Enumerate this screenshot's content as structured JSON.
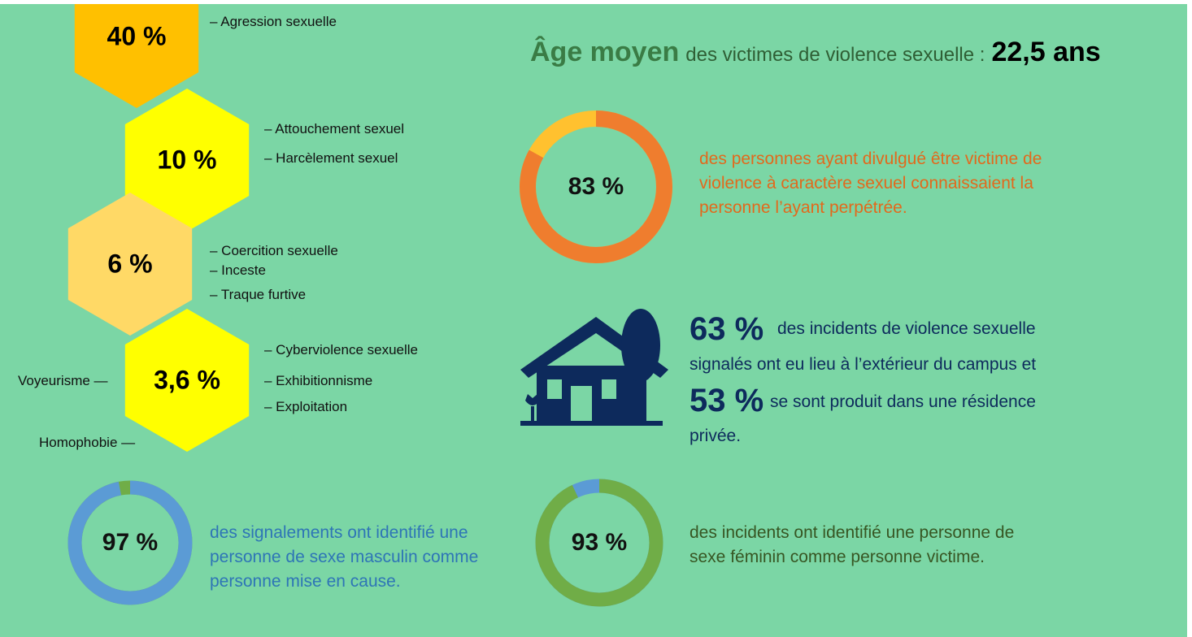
{
  "hexagons": [
    {
      "label": "40 %",
      "items": [
        "– Agression sexuelle"
      ]
    },
    {
      "label": "10 %",
      "items": [
        "– Attouchement sexuel",
        "– Harcèlement sexuel"
      ]
    },
    {
      "label": "6 %",
      "items": [
        "– Coercition sexuelle",
        "– Inceste",
        "– Traque furtive"
      ]
    },
    {
      "label": "3,6 %",
      "items": [
        "– Cyberviolence sexuelle",
        "– Exhibitionnisme",
        "– Exploitation"
      ]
    }
  ],
  "side_labels": [
    "Voyeurisme —",
    "Homophobie —"
  ],
  "age": {
    "lead": "Âge moyen",
    "text": "des victimes de violence sexuelle :",
    "value": "22,5 ans"
  },
  "donuts": [
    {
      "value": 83,
      "label": "83 %",
      "lines": [
        "des personnes ayant divulgué être victime de",
        "violence à caractère sexuel connaissaient la",
        "personne l’ayant perpétrée."
      ]
    },
    {
      "value": 97,
      "label": "97 %",
      "lines": [
        "des signalements ont identifié une",
        "personne de sexe masculin comme",
        "personne mise en cause."
      ]
    },
    {
      "value": 93,
      "label": "93 %",
      "lines": [
        "des incidents ont identifié une personne de",
        "sexe féminin comme personne victime."
      ]
    }
  ],
  "location": {
    "stat1": "63 %",
    "text1a": "des incidents de violence sexuelle",
    "text1b": "signalés ont eu lieu à l’extérieur du campus et",
    "stat2": "53 %",
    "text2a": "se sont produit dans une résidence",
    "text2b": "privée."
  }
}
